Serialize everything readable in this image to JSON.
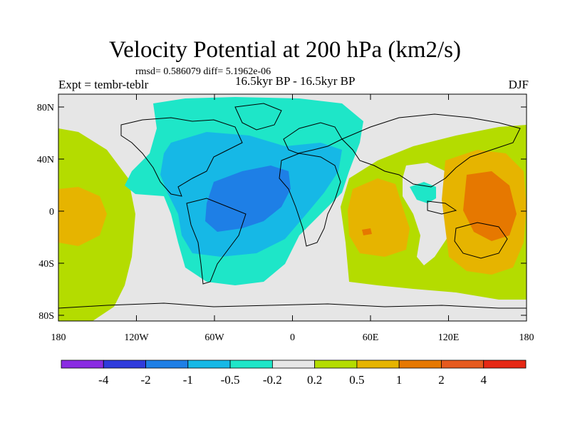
{
  "title": "Velocity Potential at 200 hPa (km2/s)",
  "stats": "rmsd= 0.586079 diff= 5.1962e-06",
  "expt": "Expt = tembr-teblr",
  "period": "16.5kyr BP - 16.5kyr BP",
  "season": "DJF",
  "map": {
    "lat_ticks": [
      "80N",
      "40N",
      "0",
      "40S",
      "80S"
    ],
    "lon_ticks": [
      "180",
      "120W",
      "60W",
      "0",
      "60E",
      "120E",
      "180"
    ]
  },
  "colorbar": {
    "colors": [
      "#8a2be2",
      "#2f3bdc",
      "#1e7fe6",
      "#16b8e6",
      "#1ee6c8",
      "#e6e6e6",
      "#b4dc00",
      "#e6b400",
      "#e67800",
      "#e65a1e",
      "#e62814"
    ],
    "labels": [
      "-4",
      "-2",
      "-1",
      "-0.5",
      "-0.2",
      "0.2",
      "0.5",
      "1",
      "2",
      "4"
    ]
  },
  "regions": [
    {
      "name": "western-hemisphere-negative",
      "level": "-0.2"
    },
    {
      "name": "atlantic-negative",
      "level": "-0.5"
    },
    {
      "name": "south-america-negative",
      "level": "-1"
    },
    {
      "name": "indo-pacific-positive",
      "level": "0.5"
    },
    {
      "name": "maritime-continent-positive",
      "level": "1"
    },
    {
      "name": "western-pacific-positive",
      "level": "2"
    }
  ]
}
